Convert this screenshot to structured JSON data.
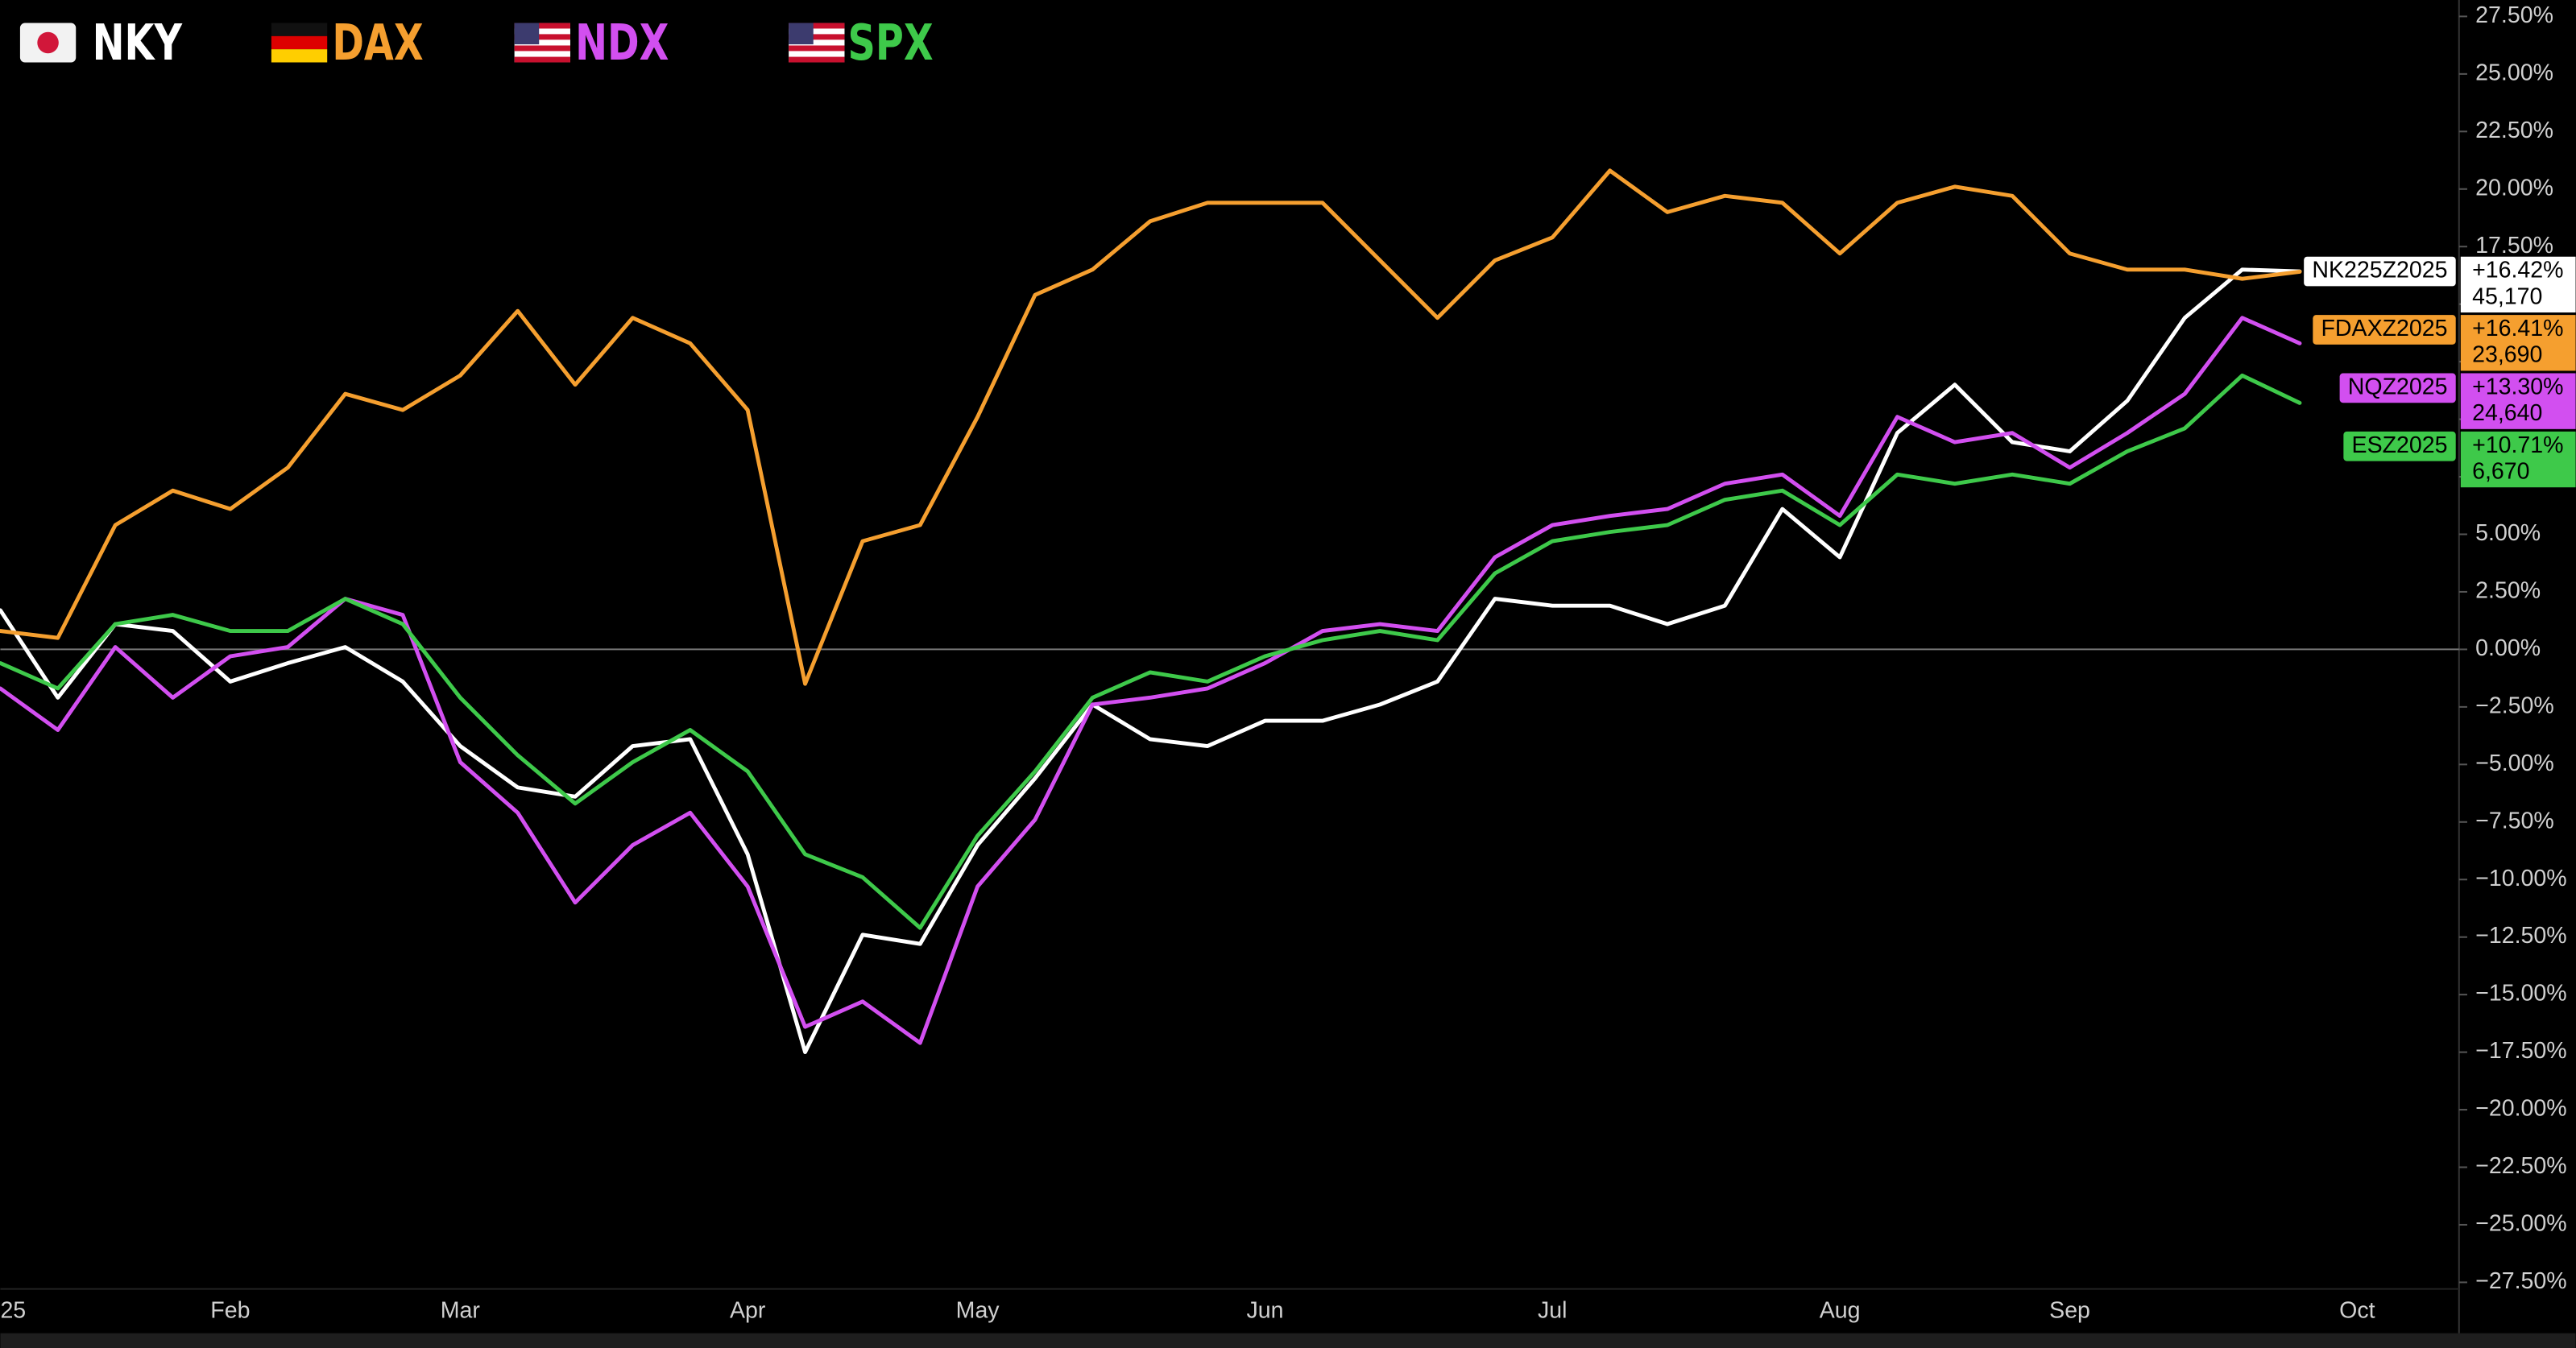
{
  "chart_data": {
    "type": "line",
    "categories": [
      "25",
      null,
      null,
      null,
      "Feb",
      null,
      null,
      null,
      "Mar",
      null,
      null,
      null,
      null,
      "Apr",
      null,
      null,
      null,
      "May",
      null,
      null,
      null,
      null,
      "Jun",
      null,
      null,
      null,
      null,
      "Jul",
      null,
      null,
      null,
      null,
      "Aug",
      null,
      null,
      null,
      "Sep",
      null,
      null,
      null,
      null,
      "Oct"
    ],
    "series": [
      {
        "name": "NKY",
        "color": "#ffffff",
        "contract": "NK225Z2025",
        "change": "+16.42%",
        "price": "45,170",
        "values": [
          1.7,
          -2.1,
          1.1,
          0.8,
          -1.4,
          -0.6,
          0.1,
          -1.4,
          -4.2,
          -6.0,
          -6.4,
          -4.2,
          -3.9,
          -8.9,
          -17.5,
          -12.4,
          -12.8,
          -8.5,
          -5.6,
          -2.4,
          -3.9,
          -4.2,
          -3.1,
          -3.1,
          -2.4,
          -1.4,
          2.2,
          1.9,
          1.9,
          1.1,
          1.9,
          6.1,
          4.0,
          9.4,
          11.5,
          9.0,
          8.6,
          10.8,
          14.4,
          16.5,
          16.42,
          null
        ]
      },
      {
        "name": "DAX",
        "color": "#f59f2f",
        "contract": "FDAXZ2025",
        "change": "+16.41%",
        "price": "23,690",
        "values": [
          0.8,
          0.5,
          5.4,
          6.9,
          6.1,
          7.9,
          11.1,
          10.4,
          11.9,
          14.7,
          11.5,
          14.4,
          13.3,
          10.4,
          -1.5,
          4.7,
          5.4,
          10.1,
          15.4,
          16.5,
          18.6,
          19.4,
          19.4,
          19.4,
          16.9,
          14.4,
          16.9,
          17.9,
          20.8,
          19.0,
          19.7,
          19.4,
          17.2,
          19.4,
          20.1,
          19.7,
          17.2,
          16.5,
          16.5,
          16.1,
          16.41,
          null
        ]
      },
      {
        "name": "NDX",
        "color": "#d24ff0",
        "contract": "NQZ2025",
        "change": "+13.30%",
        "price": "24,640",
        "values": [
          -1.7,
          -3.5,
          0.1,
          -2.1,
          -0.3,
          0.1,
          2.2,
          1.5,
          -4.9,
          -7.1,
          -11,
          -8.5,
          -7.1,
          -10.3,
          -16.4,
          -15.3,
          -17.1,
          -10.3,
          -7.4,
          -2.4,
          -2.1,
          -1.7,
          -0.6,
          0.8,
          1.1,
          0.8,
          4.0,
          5.4,
          5.8,
          6.1,
          7.2,
          7.6,
          5.8,
          10.1,
          9.0,
          9.4,
          7.9,
          9.4,
          11.1,
          14.4,
          13.3,
          null
        ]
      },
      {
        "name": "SPX",
        "color": "#3ec94a",
        "contract": "ESZ2025",
        "change": "+10.71%",
        "price": "6,670",
        "values": [
          -0.6,
          -1.7,
          1.1,
          1.5,
          0.8,
          0.8,
          2.2,
          1.1,
          -2.1,
          -4.6,
          -6.7,
          -4.9,
          -3.5,
          -5.3,
          -8.9,
          -9.9,
          -12.1,
          -8.1,
          -5.3,
          -2.1,
          -1.0,
          -1.4,
          -0.3,
          0.4,
          0.8,
          0.4,
          3.3,
          4.7,
          5.1,
          5.4,
          6.5,
          6.9,
          5.4,
          7.6,
          7.2,
          7.6,
          7.2,
          8.6,
          9.6,
          11.9,
          10.71,
          null
        ]
      }
    ],
    "ylim": [
      -27.5,
      27.5
    ],
    "yticks": [
      {
        "value": 27.5,
        "label": "27.50%"
      },
      {
        "value": 25,
        "label": "25.00%"
      },
      {
        "value": 22.5,
        "label": "22.50%"
      },
      {
        "value": 20,
        "label": "20.00%"
      },
      {
        "value": 17.5,
        "label": "17.50%"
      },
      {
        "value": 15,
        "label": "15.00%"
      },
      {
        "value": 12.5,
        "label": "12.50%"
      },
      {
        "value": 10,
        "label": "10.00%"
      },
      {
        "value": 7.5,
        "label": "7.50%"
      },
      {
        "value": 5,
        "label": "5.00%"
      },
      {
        "value": 2.5,
        "label": "2.50%"
      },
      {
        "value": 0,
        "label": "0.00%"
      },
      {
        "value": -2.5,
        "label": "−2.50%"
      },
      {
        "value": -5,
        "label": "−5.00%"
      },
      {
        "value": -7.5,
        "label": "−7.50%"
      },
      {
        "value": -10,
        "label": "−10.00%"
      },
      {
        "value": -12.5,
        "label": "−12.50%"
      },
      {
        "value": -15,
        "label": "−15.00%"
      },
      {
        "value": -17.5,
        "label": "−17.50%"
      },
      {
        "value": -20,
        "label": "−20.00%"
      },
      {
        "value": -22.5,
        "label": "−22.50%"
      },
      {
        "value": -25,
        "label": "−25.00%"
      },
      {
        "value": -27.5,
        "label": "−27.50%"
      }
    ],
    "grid": false
  }
}
